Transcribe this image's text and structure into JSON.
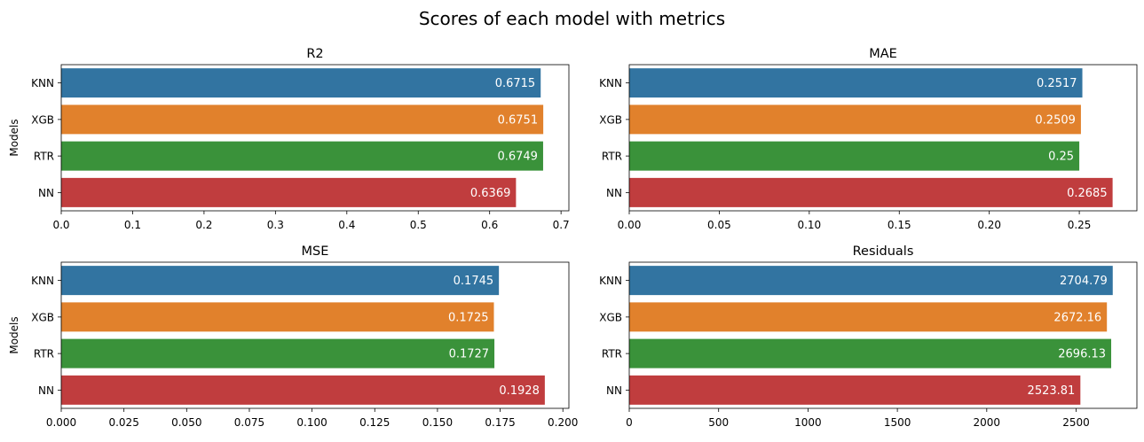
{
  "title": "Scores of each model with metrics",
  "chart_data": [
    {
      "type": "bar",
      "orientation": "horizontal",
      "title": "R2",
      "ylabel": "Models",
      "xlabel": "",
      "categories": [
        "KNN",
        "XGB",
        "RTR",
        "NN"
      ],
      "values": [
        0.6715,
        0.6751,
        0.6749,
        0.6369
      ],
      "value_labels": [
        "0.6715",
        "0.6751",
        "0.6749",
        "0.6369"
      ],
      "xlim": [
        0,
        0.711
      ],
      "xticks": [
        0.0,
        0.1,
        0.2,
        0.3,
        0.4,
        0.5,
        0.6,
        0.7
      ],
      "xtick_labels": [
        "0.0",
        "0.1",
        "0.2",
        "0.3",
        "0.4",
        "0.5",
        "0.6",
        "0.7"
      ],
      "grid": false
    },
    {
      "type": "bar",
      "orientation": "horizontal",
      "title": "MAE",
      "ylabel": "",
      "xlabel": "",
      "categories": [
        "KNN",
        "XGB",
        "RTR",
        "NN"
      ],
      "values": [
        0.2517,
        0.2509,
        0.25,
        0.2685
      ],
      "value_labels": [
        "0.2517",
        "0.2509",
        "0.25",
        "0.2685"
      ],
      "xlim": [
        0,
        0.282
      ],
      "xticks": [
        0.0,
        0.05,
        0.1,
        0.15,
        0.2,
        0.25
      ],
      "xtick_labels": [
        "0.00",
        "0.05",
        "0.10",
        "0.15",
        "0.20",
        "0.25"
      ],
      "grid": false
    },
    {
      "type": "bar",
      "orientation": "horizontal",
      "title": "MSE",
      "ylabel": "Models",
      "xlabel": "",
      "categories": [
        "KNN",
        "XGB",
        "RTR",
        "NN"
      ],
      "values": [
        0.1745,
        0.1725,
        0.1727,
        0.1928
      ],
      "value_labels": [
        "0.1745",
        "0.1725",
        "0.1727",
        "0.1928"
      ],
      "xlim": [
        0,
        0.2024
      ],
      "xticks": [
        0.0,
        0.025,
        0.05,
        0.075,
        0.1,
        0.125,
        0.15,
        0.175,
        0.2
      ],
      "xtick_labels": [
        "0.000",
        "0.025",
        "0.050",
        "0.075",
        "0.100",
        "0.125",
        "0.150",
        "0.175",
        "0.200"
      ],
      "grid": false
    },
    {
      "type": "bar",
      "orientation": "horizontal",
      "title": "Residuals",
      "ylabel": "",
      "xlabel": "",
      "categories": [
        "KNN",
        "XGB",
        "RTR",
        "NN"
      ],
      "values": [
        2704.79,
        2672.16,
        2696.13,
        2523.81
      ],
      "value_labels": [
        "2704.79",
        "2672.16",
        "2696.13",
        "2523.81"
      ],
      "xlim": [
        0,
        2840
      ],
      "xticks": [
        0,
        500,
        1000,
        1500,
        2000,
        2500
      ],
      "xtick_labels": [
        "0",
        "500",
        "1000",
        "1500",
        "2000",
        "2500"
      ],
      "grid": false
    }
  ],
  "colors": {
    "KNN": "#3274a1",
    "XGB": "#e1812c",
    "RTR": "#3a923a",
    "NN": "#c03d3e",
    "value_label": "#ffffff",
    "axis": "#000000"
  }
}
